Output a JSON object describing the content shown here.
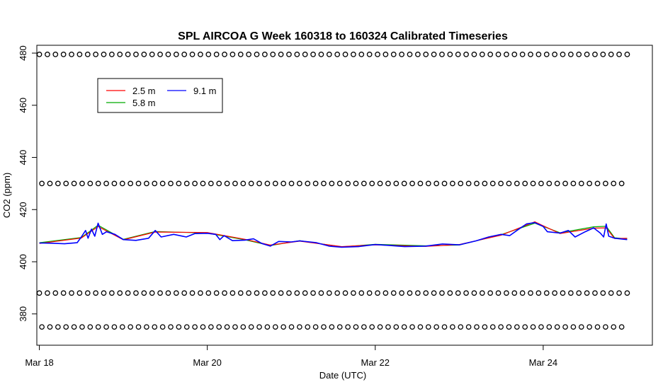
{
  "chart_data": {
    "type": "line",
    "title": "SPL AIRCOA G  Week 160318 to 160324  Calibrated Timeseries",
    "xlabel": "Date (UTC)",
    "ylabel": "CO2 (ppm)",
    "x_ticks": [
      "Mar 18",
      "Mar 20",
      "Mar 22",
      "Mar 24"
    ],
    "x_tick_days": [
      18,
      20,
      22,
      24
    ],
    "xlim": [
      17.97,
      25.3
    ],
    "y_ticks": [
      380,
      400,
      420,
      440,
      460,
      480
    ],
    "ylim": [
      368,
      483
    ],
    "x_start_day": 18.0,
    "x_end_day": 25.0,
    "legend": {
      "position": "top-left",
      "entries": [
        {
          "label": "2.5 m",
          "color": "#ff0000"
        },
        {
          "label": "5.8 m",
          "color": "#00aa00"
        },
        {
          "label": "9.1 m",
          "color": "#0000ff"
        }
      ]
    },
    "series": [
      {
        "name": "9.1 m",
        "color": "#0000ff",
        "points": [
          [
            18.0,
            407.2
          ],
          [
            18.15,
            407.1
          ],
          [
            18.3,
            406.9
          ],
          [
            18.45,
            407.3
          ],
          [
            18.5,
            409.5
          ],
          [
            18.55,
            412.0
          ],
          [
            18.58,
            409.0
          ],
          [
            18.62,
            412.5
          ],
          [
            18.66,
            409.8
          ],
          [
            18.7,
            414.8
          ],
          [
            18.75,
            410.5
          ],
          [
            18.8,
            411.5
          ],
          [
            18.9,
            410.5
          ],
          [
            19.0,
            408.5
          ],
          [
            19.15,
            408.2
          ],
          [
            19.3,
            409.0
          ],
          [
            19.38,
            412.0
          ],
          [
            19.45,
            409.5
          ],
          [
            19.6,
            410.5
          ],
          [
            19.75,
            409.5
          ],
          [
            19.85,
            410.8
          ],
          [
            20.0,
            410.9
          ],
          [
            20.1,
            410.5
          ],
          [
            20.15,
            408.5
          ],
          [
            20.2,
            410.0
          ],
          [
            20.3,
            408.1
          ],
          [
            20.45,
            408.3
          ],
          [
            20.55,
            408.8
          ],
          [
            20.65,
            407.0
          ],
          [
            20.75,
            406.0
          ],
          [
            20.85,
            407.8
          ],
          [
            21.0,
            407.6
          ],
          [
            21.1,
            408.0
          ],
          [
            21.3,
            407.3
          ],
          [
            21.45,
            406.0
          ],
          [
            21.6,
            405.6
          ],
          [
            21.8,
            405.8
          ],
          [
            22.0,
            406.6
          ],
          [
            22.15,
            406.3
          ],
          [
            22.35,
            405.8
          ],
          [
            22.6,
            406.0
          ],
          [
            22.8,
            406.8
          ],
          [
            23.0,
            406.5
          ],
          [
            23.2,
            408.0
          ],
          [
            23.35,
            409.5
          ],
          [
            23.5,
            410.5
          ],
          [
            23.6,
            410.0
          ],
          [
            23.7,
            412.3
          ],
          [
            23.8,
            414.5
          ],
          [
            23.9,
            415.0
          ],
          [
            24.0,
            413.5
          ],
          [
            24.05,
            411.5
          ],
          [
            24.2,
            411.0
          ],
          [
            24.3,
            412.0
          ],
          [
            24.38,
            409.5
          ],
          [
            24.5,
            411.5
          ],
          [
            24.6,
            413.0
          ],
          [
            24.68,
            411.0
          ],
          [
            24.72,
            409.5
          ],
          [
            24.75,
            414.5
          ],
          [
            24.78,
            409.8
          ],
          [
            24.85,
            409.0
          ],
          [
            25.0,
            408.5
          ]
        ]
      },
      {
        "name": "5.8 m",
        "color": "#00aa00",
        "points": [
          [
            18.0,
            407.3
          ],
          [
            18.5,
            409.3
          ],
          [
            18.7,
            414.0
          ],
          [
            19.0,
            408.6
          ],
          [
            19.38,
            411.6
          ],
          [
            20.0,
            411.0
          ],
          [
            20.45,
            408.4
          ],
          [
            20.75,
            406.2
          ],
          [
            21.1,
            408.1
          ],
          [
            21.6,
            405.7
          ],
          [
            22.0,
            406.7
          ],
          [
            22.6,
            406.1
          ],
          [
            23.0,
            406.4
          ],
          [
            23.5,
            410.4
          ],
          [
            23.9,
            414.8
          ],
          [
            24.2,
            411.1
          ],
          [
            24.6,
            413.4
          ],
          [
            24.75,
            413.6
          ],
          [
            24.85,
            409.2
          ],
          [
            25.0,
            408.7
          ]
        ]
      },
      {
        "name": "2.5 m",
        "color": "#ff0000",
        "points": [
          [
            18.0,
            407.0
          ],
          [
            18.5,
            409.1
          ],
          [
            18.7,
            413.5
          ],
          [
            19.0,
            408.4
          ],
          [
            19.38,
            411.4
          ],
          [
            20.0,
            411.2
          ],
          [
            20.45,
            408.6
          ],
          [
            20.75,
            406.4
          ],
          [
            21.1,
            407.9
          ],
          [
            21.6,
            405.8
          ],
          [
            22.0,
            406.5
          ],
          [
            22.6,
            405.9
          ],
          [
            23.0,
            406.6
          ],
          [
            23.5,
            410.2
          ],
          [
            23.9,
            415.3
          ],
          [
            24.2,
            410.8
          ],
          [
            24.6,
            412.9
          ],
          [
            24.75,
            413.0
          ],
          [
            24.85,
            408.9
          ],
          [
            25.0,
            409.0
          ]
        ]
      }
    ],
    "marker_rows": [
      {
        "y": 479.5,
        "marker": "o",
        "count": 74
      },
      {
        "y": 430.0,
        "marker": "o",
        "count": 74
      },
      {
        "y": 388.0,
        "marker": "o",
        "count": 74
      },
      {
        "y": 375.0,
        "marker": "o",
        "count": 74
      }
    ]
  }
}
